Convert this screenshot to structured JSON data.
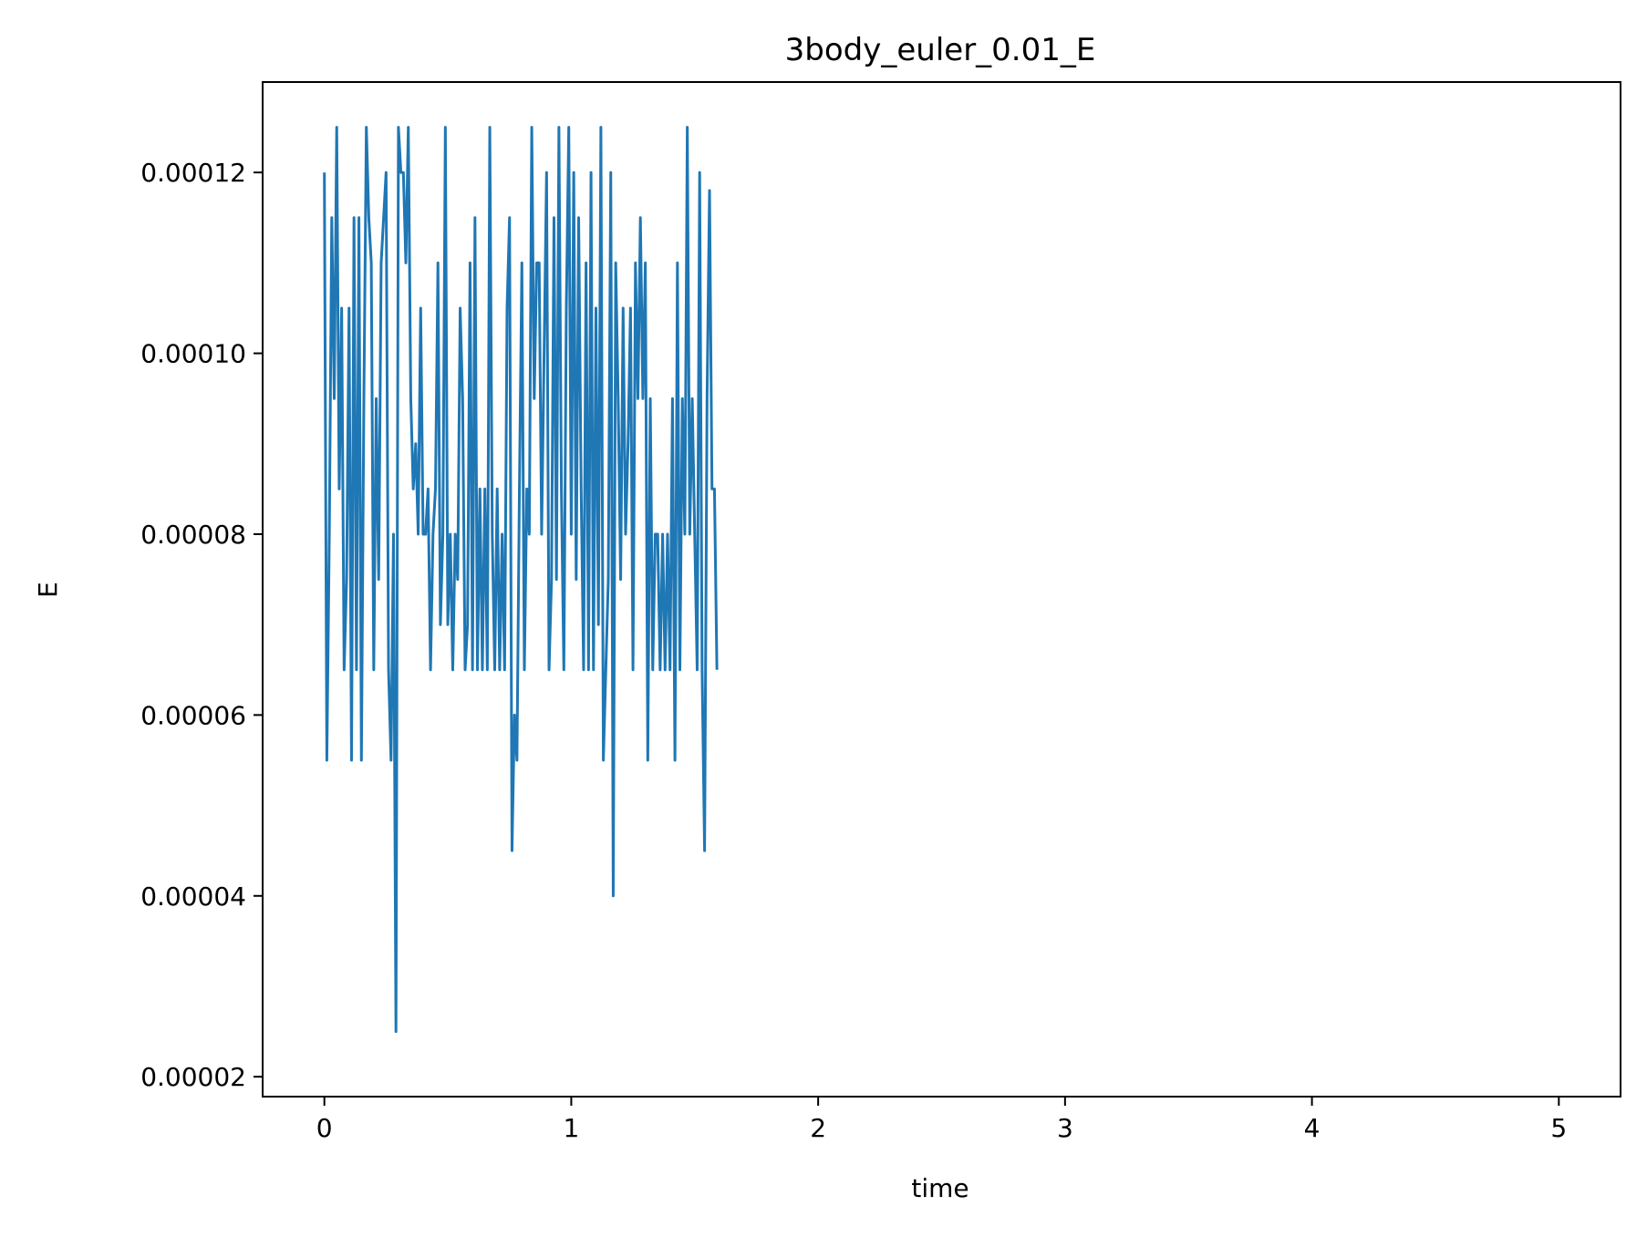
{
  "chart_data": {
    "type": "line",
    "title": "3body_euler_0.01_E",
    "xlabel": "time",
    "ylabel": "E",
    "xlim": [
      -0.25,
      5.25
    ],
    "ylim": [
      1.78e-05,
      0.00013
    ],
    "grid": false,
    "legend": "none",
    "xticks": [
      0,
      1,
      2,
      3,
      4,
      5
    ],
    "xtick_labels": [
      "0",
      "1",
      "2",
      "3",
      "4",
      "5"
    ],
    "yticks": [
      2e-05,
      4e-05,
      6e-05,
      8e-05,
      0.0001,
      0.00012
    ],
    "ytick_labels": [
      "0.00002",
      "0.00004",
      "0.00006",
      "0.00008",
      "0.00010",
      "0.00012"
    ],
    "series": [
      {
        "color": "#1f77b4",
        "x_start": 0,
        "x_step": 0.01,
        "values": [
          0.00012,
          5.5e-05,
          8e-05,
          0.000115,
          9.5e-05,
          0.000125,
          8.5e-05,
          0.000105,
          6.5e-05,
          7.5e-05,
          0.000105,
          5.5e-05,
          0.000115,
          6.5e-05,
          0.000115,
          5.5e-05,
          9.5e-05,
          0.000125,
          0.000115,
          0.00011,
          6.5e-05,
          9.5e-05,
          7.5e-05,
          0.00011,
          0.000115,
          0.00012,
          6.5e-05,
          5.5e-05,
          8e-05,
          2.5e-05,
          0.000125,
          0.00012,
          0.00012,
          0.00011,
          0.000125,
          9.5e-05,
          8.5e-05,
          9e-05,
          8e-05,
          0.000105,
          8e-05,
          8e-05,
          8.5e-05,
          6.5e-05,
          8e-05,
          8.5e-05,
          0.00011,
          7e-05,
          8e-05,
          0.000125,
          7e-05,
          8e-05,
          6.5e-05,
          8e-05,
          7.5e-05,
          0.000105,
          9.5e-05,
          6.5e-05,
          7e-05,
          0.00011,
          6.5e-05,
          0.000115,
          6.5e-05,
          8.5e-05,
          6.5e-05,
          8.5e-05,
          6.5e-05,
          0.000125,
          8e-05,
          6.5e-05,
          8.5e-05,
          6.5e-05,
          8e-05,
          6.5e-05,
          0.000105,
          0.000115,
          4.5e-05,
          6e-05,
          5.5e-05,
          8.5e-05,
          0.00011,
          6.5e-05,
          8.5e-05,
          8e-05,
          0.000125,
          9.5e-05,
          0.00011,
          0.00011,
          8e-05,
          0.0001,
          0.00012,
          6.5e-05,
          7.5e-05,
          0.000115,
          7.5e-05,
          0.000125,
          8.5e-05,
          6.5e-05,
          0.000105,
          0.000125,
          8e-05,
          0.00012,
          7.5e-05,
          0.000115,
          8.5e-05,
          6.5e-05,
          0.00011,
          6.5e-05,
          0.00012,
          6.5e-05,
          0.000105,
          7e-05,
          0.000125,
          5.5e-05,
          6.5e-05,
          7.5e-05,
          0.00012,
          4e-05,
          0.00011,
          9.5e-05,
          7.5e-05,
          0.000105,
          8e-05,
          9e-05,
          0.000105,
          6.5e-05,
          0.00011,
          9.5e-05,
          0.000115,
          9.5e-05,
          0.00011,
          5.5e-05,
          9.5e-05,
          6.5e-05,
          8e-05,
          8e-05,
          6.5e-05,
          8e-05,
          6.5e-05,
          8e-05,
          6.5e-05,
          9.5e-05,
          5.5e-05,
          0.00011,
          6.5e-05,
          9.5e-05,
          8e-05,
          0.000125,
          8e-05,
          9.5e-05,
          8e-05,
          6.5e-05,
          0.00012,
          6.5e-05,
          4.5e-05,
          9.5e-05,
          0.000118,
          8.5e-05,
          8.5e-05,
          6.5e-05
        ]
      }
    ]
  }
}
